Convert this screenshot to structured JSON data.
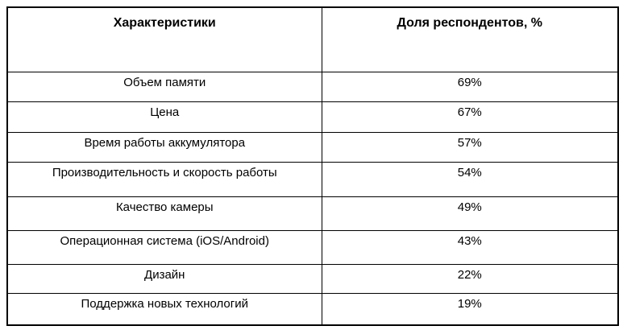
{
  "table": {
    "border_color": "#000000",
    "text_color": "#000000",
    "background_color": "#ffffff",
    "columns": [
      {
        "label": "Характеристики"
      },
      {
        "label": "Доля респондентов, %"
      }
    ],
    "rows": [
      {
        "label": "Объем памяти",
        "value": "69%"
      },
      {
        "label": "Цена",
        "value": "67%"
      },
      {
        "label": "Время работы аккумулятора",
        "value": "57%"
      },
      {
        "label": "Производительность и скорость работы",
        "value": "54%"
      },
      {
        "label": "Качество камеры",
        "value": "49%"
      },
      {
        "label": "Операционная система (iOS/Android)",
        "value": "43%"
      },
      {
        "label": "Дизайн",
        "value": "22%"
      },
      {
        "label": "Поддержка новых технологий",
        "value": "19%"
      }
    ]
  }
}
